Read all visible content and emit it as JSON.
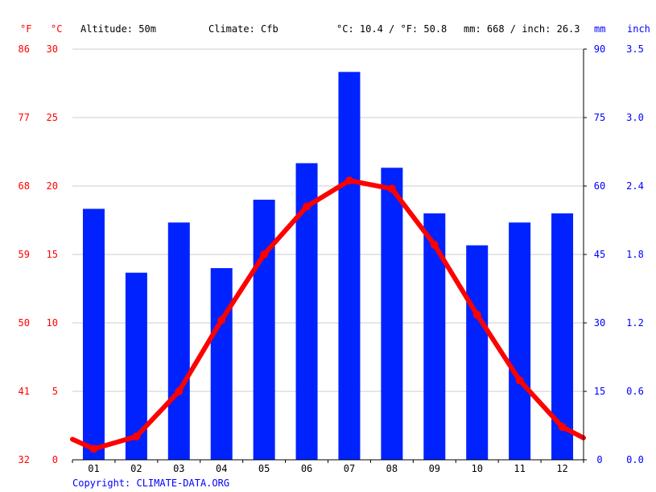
{
  "header": {
    "unit_f": "°F",
    "unit_c": "°C",
    "altitude": "Altitude: 50m",
    "climate": "Climate: Cfb",
    "temp_avg": "°C: 10.4 / °F: 50.8",
    "precip_total": "mm: 668 / inch: 26.3",
    "unit_mm": "mm",
    "unit_inch": "inch"
  },
  "axes": {
    "f_ticks": [
      "86",
      "77",
      "68",
      "59",
      "50",
      "41",
      "32"
    ],
    "c_ticks": [
      "30",
      "25",
      "20",
      "15",
      "10",
      "5",
      "0"
    ],
    "mm_ticks": [
      "90",
      "75",
      "60",
      "45",
      "30",
      "15",
      "0"
    ],
    "inch_ticks": [
      "3.5",
      "3.0",
      "2.4",
      "1.8",
      "1.2",
      "0.6",
      "0.0"
    ]
  },
  "copyright": "Copyright: CLIMATE-DATA.ORG",
  "colors": {
    "bar": "#0022ff",
    "line": "#ff0000",
    "temp_text": "#ff0000",
    "precip_text": "#0000ff",
    "grid": "#cccccc"
  },
  "chart_data": {
    "type": "bar",
    "categories": [
      "01",
      "02",
      "03",
      "04",
      "05",
      "06",
      "07",
      "08",
      "09",
      "10",
      "11",
      "12"
    ],
    "series": [
      {
        "type": "bar",
        "axis": "mm",
        "values": [
          55,
          41,
          52,
          42,
          57,
          65,
          85,
          64,
          54,
          47,
          52,
          54
        ]
      },
      {
        "type": "line",
        "axis": "°C",
        "values": [
          0.8,
          1.7,
          5.0,
          10.2,
          15.0,
          18.5,
          20.4,
          19.8,
          15.7,
          10.6,
          5.8,
          2.4
        ]
      }
    ],
    "line_edges": [
      1.5,
      1.6
    ],
    "ylim_c": [
      0,
      30
    ],
    "ylim_mm": [
      0,
      90
    ],
    "grid": true
  }
}
